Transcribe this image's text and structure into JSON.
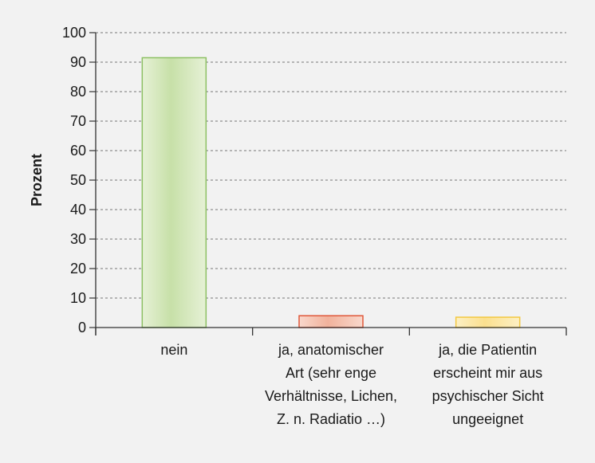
{
  "chart_data": {
    "type": "bar",
    "ylabel": "Prozent",
    "ylim": [
      0,
      100
    ],
    "yticks": [
      0,
      10,
      20,
      30,
      40,
      50,
      60,
      70,
      80,
      90,
      100
    ],
    "grid": true,
    "categories": [
      [
        "nein"
      ],
      [
        "ja, anatomischer",
        "Art (sehr enge",
        "Verhältnisse, Lichen,",
        "Z. n. Radiatio …)"
      ],
      [
        "ja, die Patientin",
        "erscheint mir aus",
        "psychischer Sicht",
        "ungeeignet"
      ]
    ],
    "values": [
      91.5,
      4,
      3.5
    ],
    "colors": [
      {
        "fill_light": "#e6f1d6",
        "fill_dark": "#c7e0a8",
        "stroke": "#8cc063"
      },
      {
        "fill_light": "#f9d8cc",
        "fill_dark": "#f1b29c",
        "stroke": "#e0583a"
      },
      {
        "fill_light": "#fdf0c4",
        "fill_dark": "#fbe08f",
        "stroke": "#f3c840"
      }
    ]
  }
}
